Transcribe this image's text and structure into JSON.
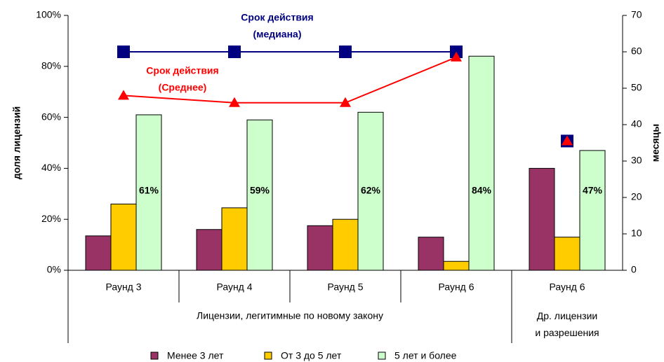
{
  "chart_data": {
    "type": "bar",
    "categories": [
      "Раунд 3",
      "Раунд 4",
      "Раунд 5",
      "Раунд 6",
      "Раунд 6"
    ],
    "groups": [
      {
        "label": "Лицензии, легитимные по новому закону",
        "span": 4
      },
      {
        "label": "Др. лицензии и разрешения",
        "span": 1
      }
    ],
    "series": [
      {
        "name": "Менее 3 лет",
        "color": "#993366",
        "values": [
          13.5,
          16,
          17.5,
          13,
          40
        ]
      },
      {
        "name": "От 3 до 5 лет",
        "color": "#FFCC00",
        "values": [
          26,
          24.5,
          20,
          3.5,
          13
        ]
      },
      {
        "name": "5 лет и более",
        "color": "#CCFFCC",
        "values": [
          61,
          59,
          62,
          84,
          47
        ],
        "value_labels": [
          "61%",
          "59%",
          "62%",
          "84%",
          "47%"
        ]
      },
      {
        "name": "Срок действия (медиана)",
        "type": "line",
        "axis": "y2",
        "color": "#000080",
        "marker": "square",
        "values": [
          60,
          60,
          60,
          60,
          35.5
        ]
      },
      {
        "name": "Срок действия (Среднее)",
        "type": "line",
        "axis": "y2",
        "color": "#FF0000",
        "marker": "triangle",
        "values": [
          48,
          46,
          46,
          58.5,
          35.5
        ]
      }
    ],
    "annotations": [
      {
        "lines": [
          "Срок действия",
          "(медиана)"
        ],
        "color": "#000080"
      },
      {
        "lines": [
          "Срок действия",
          "(Среднее)"
        ],
        "color": "#FF0000"
      }
    ],
    "ylabel": "доля лицензий",
    "y2label": "месяцы",
    "ylim": [
      0,
      100
    ],
    "yticks": [
      {
        "value": 0,
        "label": "0%"
      },
      {
        "value": 20,
        "label": "20%"
      },
      {
        "value": 40,
        "label": "40%"
      },
      {
        "value": 60,
        "label": "60%"
      },
      {
        "value": 80,
        "label": "80%"
      },
      {
        "value": 100,
        "label": "100%"
      }
    ],
    "y2lim": [
      0,
      70
    ],
    "y2ticks": [
      0,
      10,
      20,
      30,
      40,
      50,
      60,
      70
    ]
  }
}
